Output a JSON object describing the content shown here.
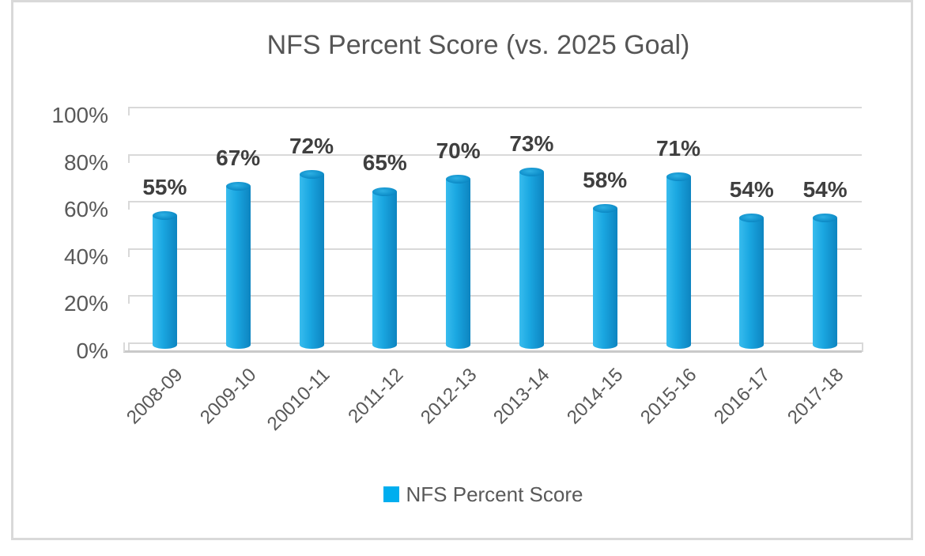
{
  "title": "NFS Percent Score (vs. 2025 Goal)",
  "legend": {
    "label": "NFS Percent Score",
    "marker_color": "#00AEEF"
  },
  "colors": {
    "frame_border": "#d9d9d9",
    "grid": "#d9d9d9",
    "floor": "#c9c9c9",
    "title_text": "#555555",
    "axis_text": "#595959",
    "data_label_text": "#3f3f3f",
    "bar_main": "#1aa7e1",
    "bar_light": "#38bcee",
    "bar_dark": "#0d84c0",
    "bar_top": "#1090cb",
    "legend_marker": "#00AEEF",
    "background": "#ffffff"
  },
  "chart_data": {
    "type": "bar",
    "style": "3d-cylinder",
    "title": "NFS Percent Score (vs. 2025 Goal)",
    "categories": [
      "2008-09",
      "2009-10",
      "20010-11",
      "2011-12",
      "2012-13",
      "2013-14",
      "2014-15",
      "2015-16",
      "2016-17",
      "2017-18"
    ],
    "series": [
      {
        "name": "NFS Percent Score",
        "values": [
          55,
          67,
          72,
          65,
          70,
          73,
          58,
          71,
          54,
          54
        ],
        "data_labels": [
          "55%",
          "67%",
          "72%",
          "65%",
          "70%",
          "73%",
          "58%",
          "71%",
          "54%",
          "54%"
        ]
      }
    ],
    "xlabel": "",
    "ylabel": "",
    "ylim": [
      0,
      100
    ],
    "ytick_values": [
      0,
      20,
      40,
      60,
      80,
      100
    ],
    "ytick_labels": [
      "0%",
      "20%",
      "40%",
      "60%",
      "80%",
      "100%"
    ],
    "grid": true,
    "legend_position": "bottom"
  }
}
